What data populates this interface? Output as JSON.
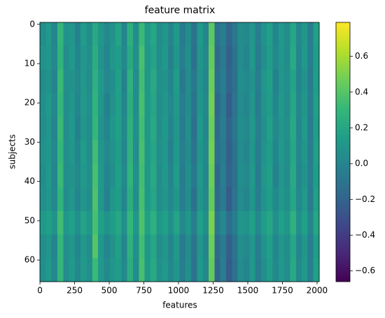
{
  "chart_data": {
    "type": "heatmap",
    "title": "feature matrix",
    "x_label": "features",
    "y_label": "subjects",
    "xlim": [
      -0.5,
      2015.5
    ],
    "ylim": [
      65.5,
      -0.5
    ],
    "xticks": [
      0,
      250,
      500,
      750,
      1000,
      1250,
      1500,
      1750,
      2000
    ],
    "yticks": [
      0,
      10,
      20,
      30,
      40,
      50,
      60
    ],
    "colormap": "viridis",
    "clim": [
      -0.66,
      0.79
    ],
    "colorbar_ticks": [
      {
        "value": -0.6,
        "label": "−0.6"
      },
      {
        "value": -0.4,
        "label": "−0.4"
      },
      {
        "value": -0.2,
        "label": "−0.2"
      },
      {
        "value": 0,
        "label": "0.0"
      },
      0.2,
      0.4,
      0.6
    ],
    "values": [
      [
        0.05,
        0.12,
        0.0,
        0.3,
        0.08,
        0.1,
        -0.02,
        0.14,
        0.05,
        0.22,
        0.1,
        0.02,
        0.08,
        0.18,
        0.0,
        0.25,
        0.05,
        0.32,
        0.12,
        0.2,
        0.04,
        0.1,
        0.0,
        0.12,
        -0.06,
        0.05,
        -0.1,
        0.12,
        0.0,
        0.42,
        -0.12,
        -0.05,
        -0.18,
        -0.08,
        0.05,
        0.02,
        0.1,
        -0.04,
        0.08,
        0.15,
        0.0,
        0.12,
        0.05,
        0.2,
        0.02,
        0.1,
        -0.05,
        0.16
      ],
      [
        0.08,
        0.1,
        0.02,
        0.28,
        0.04,
        0.12,
        0.0,
        0.1,
        0.06,
        0.24,
        0.08,
        0.0,
        0.1,
        0.14,
        0.02,
        0.22,
        0.06,
        0.36,
        0.1,
        0.18,
        0.05,
        0.12,
        -0.02,
        0.1,
        -0.04,
        0.06,
        -0.12,
        0.1,
        0.02,
        0.44,
        -0.16,
        -0.06,
        -0.22,
        -0.1,
        0.04,
        0.0,
        0.12,
        -0.06,
        0.06,
        0.14,
        0.02,
        0.1,
        0.04,
        0.22,
        0.0,
        0.12,
        -0.04,
        0.14
      ],
      [
        0.04,
        0.08,
        0.0,
        0.32,
        0.06,
        0.08,
        0.02,
        0.12,
        0.04,
        0.26,
        0.12,
        0.02,
        0.06,
        0.16,
        -0.02,
        0.26,
        0.04,
        0.34,
        0.1,
        0.22,
        0.06,
        0.08,
        0.0,
        0.14,
        -0.08,
        0.04,
        -0.08,
        0.08,
        0.0,
        0.46,
        -0.14,
        -0.04,
        -0.2,
        -0.12,
        0.06,
        0.02,
        0.08,
        -0.05,
        0.1,
        0.16,
        -0.02,
        0.1,
        0.06,
        0.18,
        0.0,
        0.08,
        -0.06,
        0.14
      ],
      [
        0.06,
        0.12,
        0.02,
        0.3,
        0.05,
        0.1,
        0.0,
        0.12,
        0.06,
        0.28,
        0.1,
        -0.02,
        0.08,
        0.15,
        0.0,
        0.24,
        0.05,
        0.36,
        0.12,
        0.2,
        0.04,
        0.1,
        0.02,
        0.12,
        -0.05,
        0.05,
        -0.1,
        0.1,
        0.02,
        0.48,
        -0.18,
        -0.06,
        -0.24,
        -0.1,
        0.04,
        0.0,
        0.1,
        -0.06,
        0.08,
        0.14,
        0.0,
        0.12,
        0.04,
        0.2,
        0.02,
        0.1,
        -0.04,
        0.16
      ],
      [
        0.05,
        0.1,
        0.0,
        0.32,
        0.04,
        0.12,
        -0.02,
        0.1,
        0.05,
        0.3,
        0.08,
        0.0,
        0.1,
        0.16,
        0.02,
        0.26,
        0.06,
        0.34,
        0.1,
        0.22,
        0.05,
        0.12,
        0.0,
        0.1,
        -0.06,
        0.06,
        -0.12,
        0.12,
        0.0,
        0.46,
        -0.16,
        -0.04,
        -0.2,
        -0.08,
        0.06,
        0.02,
        0.12,
        -0.04,
        0.06,
        0.16,
        0.02,
        0.1,
        0.06,
        0.22,
        0.0,
        0.12,
        -0.06,
        0.14
      ],
      [
        0.07,
        0.1,
        0.02,
        0.3,
        0.06,
        0.1,
        0.0,
        0.14,
        0.04,
        0.34,
        0.1,
        0.02,
        0.08,
        0.14,
        0.0,
        0.26,
        0.04,
        0.36,
        0.12,
        0.2,
        0.06,
        0.1,
        -0.02,
        0.12,
        -0.04,
        0.04,
        -0.1,
        0.1,
        0.02,
        0.48,
        -0.14,
        -0.06,
        -0.22,
        -0.1,
        0.04,
        0.0,
        0.1,
        -0.05,
        0.08,
        0.14,
        0.0,
        0.12,
        0.05,
        0.2,
        0.02,
        0.1,
        -0.05,
        0.16
      ],
      [
        0.05,
        0.12,
        0.0,
        0.32,
        0.05,
        0.08,
        0.02,
        0.12,
        0.06,
        0.36,
        0.12,
        0.0,
        0.06,
        0.16,
        0.02,
        0.28,
        0.06,
        0.34,
        0.1,
        0.22,
        0.04,
        0.12,
        0.0,
        0.14,
        -0.06,
        0.06,
        -0.08,
        0.12,
        0.0,
        0.46,
        -0.18,
        -0.04,
        -0.2,
        -0.12,
        0.06,
        0.02,
        0.12,
        -0.06,
        0.1,
        0.16,
        -0.02,
        0.1,
        0.04,
        0.22,
        0.0,
        0.08,
        -0.04,
        0.14
      ],
      [
        0.06,
        0.1,
        0.02,
        0.28,
        0.04,
        0.1,
        0.0,
        0.1,
        0.05,
        0.38,
        0.1,
        -0.02,
        0.1,
        0.14,
        0.0,
        0.24,
        0.05,
        0.36,
        0.12,
        0.2,
        0.05,
        0.1,
        0.02,
        0.1,
        -0.05,
        0.05,
        -0.12,
        0.1,
        0.02,
        0.44,
        -0.16,
        -0.06,
        -0.24,
        -0.1,
        0.04,
        0.0,
        0.1,
        -0.04,
        0.08,
        0.14,
        0.02,
        0.12,
        0.06,
        0.2,
        0.02,
        0.12,
        -0.06,
        0.16
      ],
      [
        0.12,
        0.16,
        0.08,
        0.34,
        0.1,
        0.16,
        0.06,
        0.18,
        0.1,
        0.36,
        0.16,
        0.08,
        0.14,
        0.2,
        0.06,
        0.3,
        0.1,
        0.38,
        0.16,
        0.26,
        0.1,
        0.16,
        0.06,
        0.18,
        0.02,
        0.1,
        -0.04,
        0.16,
        0.06,
        0.5,
        -0.08,
        0.02,
        -0.14,
        -0.04,
        0.1,
        0.08,
        0.16,
        0.02,
        0.14,
        0.2,
        0.06,
        0.16,
        0.1,
        0.26,
        0.06,
        0.16,
        0.0,
        0.2
      ],
      [
        0.05,
        0.1,
        0.0,
        0.3,
        0.06,
        0.1,
        0.0,
        0.12,
        0.04,
        0.4,
        0.1,
        0.0,
        0.08,
        0.16,
        0.0,
        0.26,
        0.06,
        0.34,
        0.1,
        0.2,
        0.04,
        0.1,
        0.0,
        0.12,
        -0.06,
        0.04,
        -0.1,
        0.1,
        0.0,
        0.46,
        -0.16,
        -0.06,
        -0.22,
        -0.1,
        0.06,
        0.02,
        0.1,
        -0.05,
        0.08,
        0.16,
        0.0,
        0.1,
        0.05,
        0.2,
        0.0,
        0.1,
        -0.05,
        0.14
      ],
      [
        0.06,
        0.12,
        0.02,
        0.3,
        0.04,
        0.12,
        0.02,
        0.12,
        0.06,
        0.32,
        0.12,
        0.02,
        0.1,
        0.14,
        0.02,
        0.24,
        0.04,
        0.36,
        0.12,
        0.22,
        0.06,
        0.12,
        0.02,
        0.1,
        -0.04,
        0.06,
        -0.1,
        0.12,
        0.02,
        0.44,
        -0.2,
        -0.04,
        -0.24,
        -0.12,
        0.04,
        0.0,
        0.12,
        -0.06,
        0.06,
        0.14,
        0.02,
        0.12,
        0.04,
        0.22,
        0.02,
        0.12,
        -0.04,
        0.16
      ]
    ]
  }
}
